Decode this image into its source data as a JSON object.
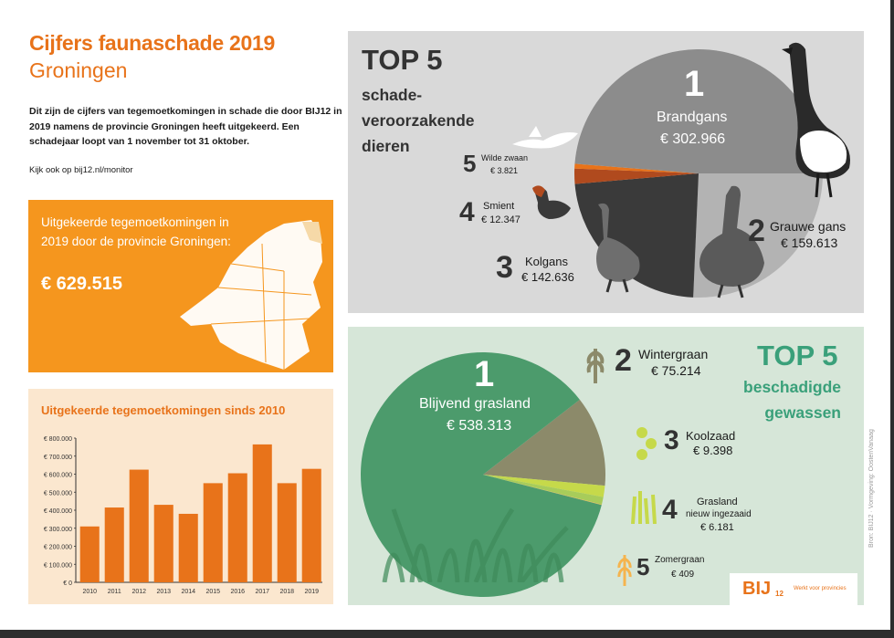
{
  "header": {
    "title_line1": "Cijfers faunaschade 2019",
    "title_line2": "Groningen",
    "intro": "Dit zijn de cijfers van tegemoetkomingen in schade die door BIJ12 in 2019 namens de provincie Groningen heeft uitgekeerd. Een schadejaar loopt van 1 november tot 31 oktober.",
    "link": "Kijk ook op bij12.nl/monitor"
  },
  "summary": {
    "label": "Uitgekeerde tegemoetkomingen in 2019 door de provincie Groningen:",
    "amount": "€ 629.515"
  },
  "animals": {
    "heading": "TOP 5",
    "subheading_1": "schade-",
    "subheading_2": "veroorzakende",
    "subheading_3": "dieren",
    "items": [
      {
        "rank": "1",
        "name": "Brandgans",
        "amount": "€ 302.966"
      },
      {
        "rank": "2",
        "name": "Grauwe gans",
        "amount": "€ 159.613"
      },
      {
        "rank": "3",
        "name": "Kolgans",
        "amount": "€ 142.636"
      },
      {
        "rank": "4",
        "name": "Smient",
        "amount": "€ 12.347"
      },
      {
        "rank": "5",
        "name": "Wilde zwaan",
        "amount": "€ 3.821"
      }
    ]
  },
  "crops": {
    "heading": "TOP 5",
    "subheading_1": "beschadigde",
    "subheading_2": "gewassen",
    "items": [
      {
        "rank": "1",
        "name": "Blijvend grasland",
        "amount": "€ 538.313"
      },
      {
        "rank": "2",
        "name": "Wintergraan",
        "amount": "€ 75.214"
      },
      {
        "rank": "3",
        "name": "Koolzaad",
        "amount": "€ 9.398"
      },
      {
        "rank": "4",
        "name": "Grasland",
        "name2": "nieuw ingezaaid",
        "amount": "€ 6.181"
      },
      {
        "rank": "5",
        "name": "Zomergraan",
        "amount": "€ 409"
      }
    ]
  },
  "logo": {
    "text": "BIJ",
    "sub": "12",
    "tagline": "Werkt voor provincies"
  },
  "credit": "Bron: BIJ12 · Vormgeving: OostenVanaag",
  "colors": {
    "orange": "#e8731a",
    "light_orange": "#f5961e",
    "pie_grey_light": "#8c8c8c",
    "pie_grey_mid": "#b3b3b3",
    "pie_dark": "#3a3a3a",
    "pie_green": "#4c9b6c",
    "pie_olive": "#8c8a6a",
    "pie_lime": "#c6d94a"
  },
  "chart_data": [
    {
      "type": "bar",
      "title": "Uitgekeerde tegemoetkomingen sinds 2010",
      "categories": [
        "2010",
        "2011",
        "2012",
        "2013",
        "2014",
        "2015",
        "2016",
        "2017",
        "2018",
        "2019"
      ],
      "values": [
        310000,
        415000,
        625000,
        430000,
        380000,
        550000,
        605000,
        765000,
        550000,
        629515
      ],
      "ylim": [
        0,
        800000
      ],
      "yticks": [
        "€ 800.000",
        "€ 700.000",
        "€ 600.000",
        "€ 500.000",
        "€ 400.000",
        "€ 300.000",
        "€ 200.000",
        "€ 100.000",
        "€ 0"
      ],
      "color": "#e8731a"
    },
    {
      "type": "pie",
      "labels": [
        "Brandgans",
        "Grauwe gans",
        "Kolgans",
        "Smient",
        "Wilde zwaan"
      ],
      "values": [
        302966,
        159613,
        142636,
        12347,
        3821
      ]
    },
    {
      "type": "pie",
      "labels": [
        "Blijvend grasland",
        "Wintergraan",
        "Koolzaad",
        "Grasland nieuw ingezaaid",
        "Zomergraan"
      ],
      "values": [
        538313,
        75214,
        9398,
        6181,
        409
      ]
    }
  ]
}
